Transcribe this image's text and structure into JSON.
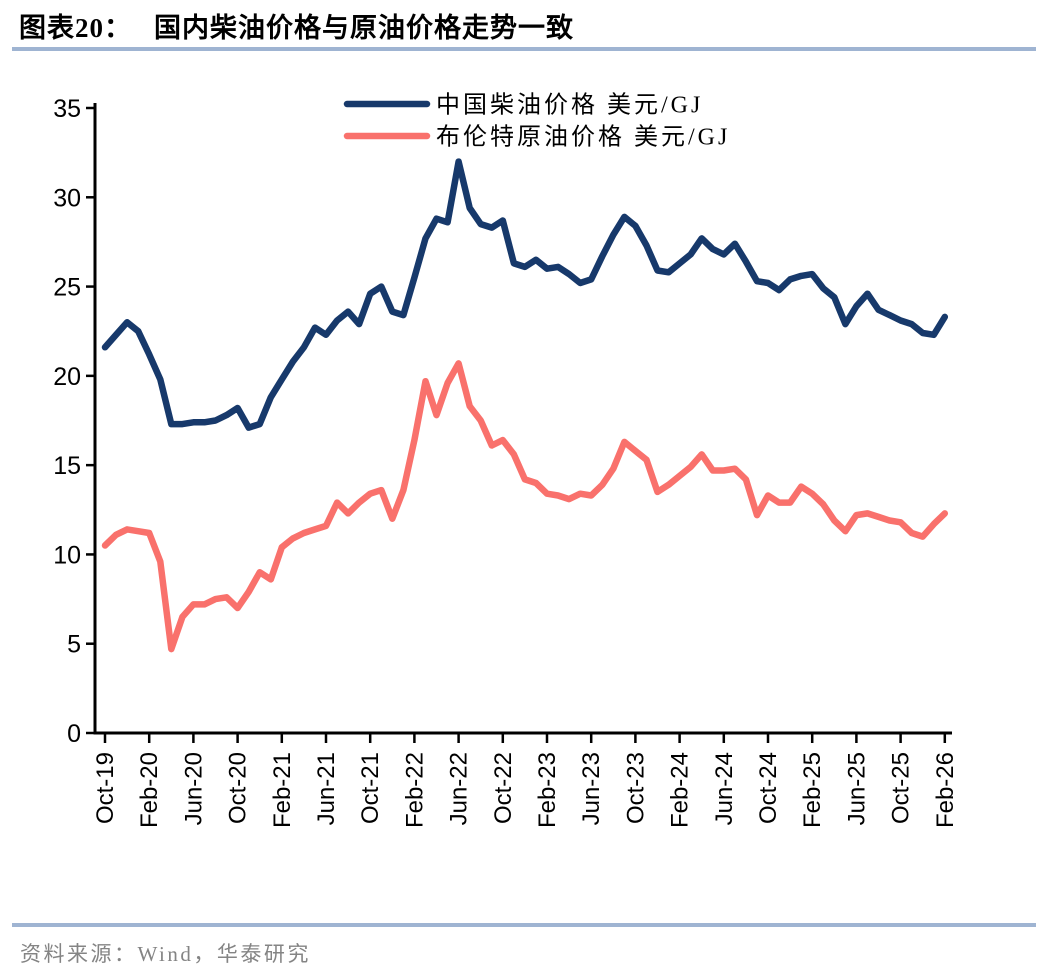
{
  "page": {
    "figure_label": "图表20：",
    "figure_title": "国内柴油价格与原油价格走势一致",
    "source": "资料来源：Wind，华泰研究",
    "rule_color": "#9FB4D2"
  },
  "chart_data": {
    "type": "line",
    "title": "",
    "xlabel": "",
    "ylabel": "",
    "x_start": "Oct-19",
    "x_interval": "monthly",
    "x_tick_labels": [
      "Oct-19",
      "Feb-20",
      "Jun-20",
      "Oct-20",
      "Feb-21",
      "Jun-21",
      "Oct-21",
      "Feb-22",
      "Jun-22",
      "Oct-22",
      "Feb-23",
      "Jun-23",
      "Oct-23",
      "Feb-24",
      "Jun-24",
      "Oct-24",
      "Feb-25",
      "Jun-25",
      "Oct-25",
      "Feb-26"
    ],
    "tick_every_n_months": 4,
    "y_ticks": [
      0,
      5,
      10,
      15,
      20,
      25,
      30,
      35
    ],
    "ylim": [
      0,
      35
    ],
    "grid": false,
    "legend_position": "top-center",
    "series": [
      {
        "name": "中国柴油价格 美元/GJ",
        "color": "#17396B",
        "values": [
          21.6,
          22.3,
          23.0,
          22.5,
          21.2,
          19.8,
          17.3,
          17.3,
          17.4,
          17.4,
          17.5,
          17.8,
          18.2,
          17.1,
          17.3,
          18.8,
          19.8,
          20.8,
          21.6,
          22.7,
          22.3,
          23.1,
          23.6,
          22.9,
          24.6,
          25.0,
          23.6,
          23.4,
          25.5,
          27.7,
          28.8,
          28.6,
          32.0,
          29.4,
          28.5,
          28.3,
          28.7,
          26.3,
          26.1,
          26.5,
          26.0,
          26.1,
          25.7,
          25.2,
          25.4,
          26.7,
          27.9,
          28.9,
          28.4,
          27.3,
          25.9,
          25.8,
          26.3,
          26.8,
          27.7,
          27.1,
          26.8,
          27.4,
          26.4,
          25.3,
          25.2,
          24.8,
          25.4,
          25.6,
          25.7,
          24.9,
          24.4,
          22.9,
          23.9,
          24.6,
          23.7,
          23.4,
          23.1,
          22.9,
          22.4,
          22.3,
          23.3
        ]
      },
      {
        "name": "布伦特原油价格 美元/GJ",
        "color": "#F9716C",
        "values": [
          10.5,
          11.1,
          11.4,
          11.3,
          11.2,
          9.6,
          4.7,
          6.5,
          7.2,
          7.2,
          7.5,
          7.6,
          7.0,
          7.9,
          9.0,
          8.6,
          10.4,
          10.9,
          11.2,
          11.4,
          11.6,
          12.9,
          12.3,
          12.9,
          13.4,
          13.6,
          12.0,
          13.6,
          16.4,
          19.7,
          17.8,
          19.6,
          20.7,
          18.3,
          17.5,
          16.1,
          16.4,
          15.6,
          14.2,
          14.0,
          13.4,
          13.3,
          13.1,
          13.4,
          13.3,
          13.9,
          14.8,
          16.3,
          15.8,
          15.3,
          13.5,
          13.9,
          14.4,
          14.9,
          15.6,
          14.7,
          14.7,
          14.8,
          14.2,
          12.2,
          13.3,
          12.9,
          12.9,
          13.8,
          13.4,
          12.8,
          11.9,
          11.3,
          12.2,
          12.3,
          12.1,
          11.9,
          11.8,
          11.2,
          11.0,
          11.7,
          12.3
        ]
      }
    ]
  }
}
